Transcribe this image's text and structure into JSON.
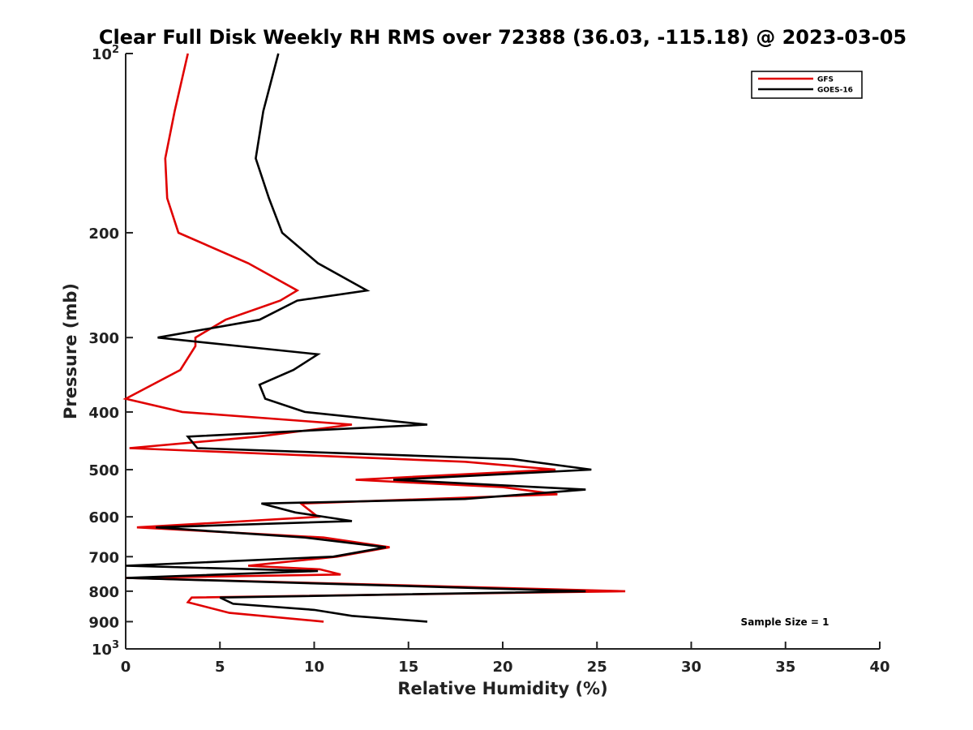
{
  "chart_data": {
    "type": "line",
    "title": "Clear Full Disk Weekly RH RMS over 72388 (36.03, -115.18) @ 2023-03-05",
    "xlabel": "Relative Humidity (%)",
    "ylabel": "Pressure (mb)",
    "xlim": [
      0,
      40
    ],
    "ylim": [
      100,
      1000
    ],
    "y_scale": "log",
    "y_reversed": true,
    "x_ticks": [
      "0",
      "5",
      "10",
      "15",
      "20",
      "25",
      "30",
      "35",
      "40"
    ],
    "y_ticks": [
      {
        "value": 100,
        "label": "10",
        "sup": "2"
      },
      {
        "value": 200,
        "label": "200",
        "sup": ""
      },
      {
        "value": 300,
        "label": "300",
        "sup": ""
      },
      {
        "value": 400,
        "label": "400",
        "sup": ""
      },
      {
        "value": 500,
        "label": "500",
        "sup": ""
      },
      {
        "value": 600,
        "label": "600",
        "sup": ""
      },
      {
        "value": 700,
        "label": "700",
        "sup": ""
      },
      {
        "value": 800,
        "label": "800",
        "sup": ""
      },
      {
        "value": 900,
        "label": "900",
        "sup": ""
      },
      {
        "value": 1000,
        "label": "10",
        "sup": "3"
      }
    ],
    "grid": false,
    "legend_position": "top-right",
    "annotation": "Sample Size = 1",
    "series": [
      {
        "name": "GFS",
        "color": "#e00000",
        "points": [
          [
            3.3,
            100
          ],
          [
            2.6,
            125
          ],
          [
            2.1,
            150
          ],
          [
            2.2,
            175
          ],
          [
            2.8,
            200
          ],
          [
            6.5,
            225
          ],
          [
            9.1,
            250
          ],
          [
            8.2,
            260
          ],
          [
            5.3,
            280
          ],
          [
            3.7,
            300
          ],
          [
            3.7,
            310
          ],
          [
            2.9,
            340
          ],
          [
            0.0,
            380
          ],
          [
            3.0,
            400
          ],
          [
            12.0,
            420
          ],
          [
            7.0,
            440
          ],
          [
            0.2,
            460
          ],
          [
            18.0,
            485
          ],
          [
            22.8,
            500
          ],
          [
            12.2,
            520
          ],
          [
            20.0,
            535
          ],
          [
            22.9,
            550
          ],
          [
            9.3,
            570
          ],
          [
            9.6,
            580
          ],
          [
            10.2,
            600
          ],
          [
            0.6,
            625
          ],
          [
            10.5,
            650
          ],
          [
            14.0,
            675
          ],
          [
            11.2,
            700
          ],
          [
            6.5,
            725
          ],
          [
            10.3,
            735
          ],
          [
            11.4,
            750
          ],
          [
            0.0,
            760
          ],
          [
            26.5,
            800
          ],
          [
            3.5,
            820
          ],
          [
            3.3,
            835
          ],
          [
            5.5,
            870
          ],
          [
            10.5,
            900
          ]
        ]
      },
      {
        "name": "GOES-16",
        "color": "#000000",
        "points": [
          [
            8.1,
            100
          ],
          [
            7.3,
            125
          ],
          [
            6.9,
            150
          ],
          [
            7.6,
            175
          ],
          [
            8.3,
            200
          ],
          [
            10.2,
            225
          ],
          [
            12.8,
            250
          ],
          [
            9.1,
            260
          ],
          [
            7.1,
            280
          ],
          [
            1.7,
            300
          ],
          [
            10.2,
            320
          ],
          [
            8.9,
            340
          ],
          [
            7.1,
            360
          ],
          [
            7.4,
            380
          ],
          [
            9.5,
            400
          ],
          [
            16.0,
            420
          ],
          [
            3.3,
            440
          ],
          [
            3.8,
            460
          ],
          [
            20.5,
            480
          ],
          [
            24.7,
            500
          ],
          [
            14.2,
            520
          ],
          [
            24.4,
            540
          ],
          [
            18.0,
            560
          ],
          [
            7.2,
            570
          ],
          [
            9.0,
            590
          ],
          [
            12.0,
            610
          ],
          [
            1.6,
            625
          ],
          [
            9.5,
            650
          ],
          [
            13.8,
            675
          ],
          [
            11.0,
            700
          ],
          [
            0.0,
            725
          ],
          [
            10.2,
            740
          ],
          [
            0.0,
            760
          ],
          [
            24.4,
            800
          ],
          [
            5.0,
            820
          ],
          [
            5.7,
            840
          ],
          [
            10.0,
            860
          ],
          [
            12.0,
            880
          ],
          [
            16.0,
            900
          ]
        ]
      }
    ]
  }
}
